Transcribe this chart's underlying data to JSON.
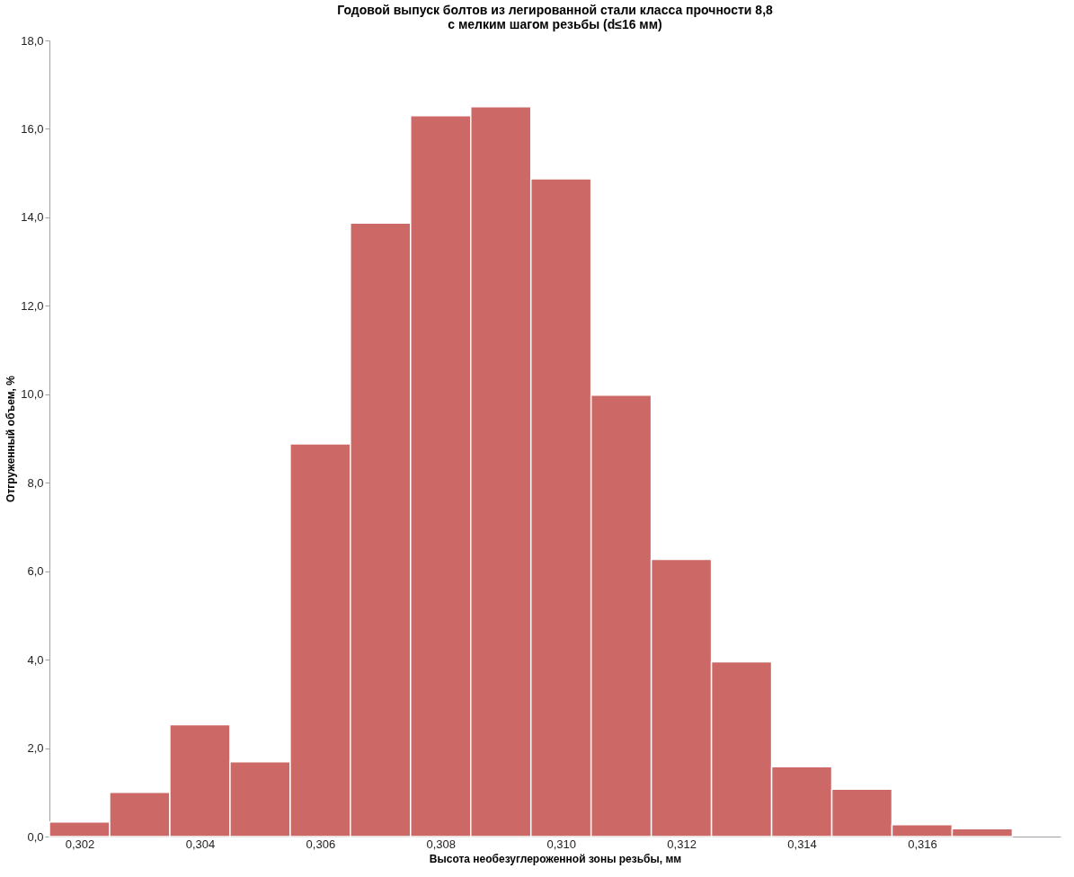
{
  "chart_data": {
    "type": "histogram",
    "title": [
      "Годовой выпуск болтов из легированной стали класса прочности 8,8",
      "с мелким шагом резьбы (d≤16 мм)"
    ],
    "xlabel": "Высота необезуглероженной зоны резьбы, мм",
    "ylabel": "Отгруженный объем, %",
    "bins": [
      0.3015,
      0.3025,
      0.3035,
      0.3045,
      0.3055,
      0.3065,
      0.3075,
      0.3085,
      0.3095,
      0.3105,
      0.3115,
      0.3125,
      0.3135,
      0.3145,
      0.3155,
      0.3165,
      0.3175
    ],
    "values": [
      0.33,
      1.0,
      2.53,
      1.69,
      8.88,
      13.87,
      16.3,
      16.5,
      14.87,
      9.98,
      6.27,
      3.95,
      1.58,
      1.07,
      0.27,
      0.18
    ],
    "color": "#cc6966",
    "xlim": [
      0.3015,
      0.3183
    ],
    "ylim": [
      0,
      18
    ],
    "xticks": [
      {
        "value": 0.302,
        "label": "0,302"
      },
      {
        "value": 0.304,
        "label": "0,304"
      },
      {
        "value": 0.306,
        "label": "0,306"
      },
      {
        "value": 0.308,
        "label": "0,308"
      },
      {
        "value": 0.31,
        "label": "0,310"
      },
      {
        "value": 0.312,
        "label": "0,312"
      },
      {
        "value": 0.314,
        "label": "0,314"
      },
      {
        "value": 0.316,
        "label": "0,316"
      }
    ],
    "yticks": [
      {
        "value": 0,
        "label": "0,0"
      },
      {
        "value": 2,
        "label": "2,0"
      },
      {
        "value": 4,
        "label": "4,0"
      },
      {
        "value": 6,
        "label": "6,0"
      },
      {
        "value": 8,
        "label": "8,0"
      },
      {
        "value": 10,
        "label": "10,0"
      },
      {
        "value": 12,
        "label": "12,0"
      },
      {
        "value": 14,
        "label": "14,0"
      },
      {
        "value": 16,
        "label": "16,0"
      },
      {
        "value": 18,
        "label": "18,0"
      }
    ],
    "grid": false
  }
}
